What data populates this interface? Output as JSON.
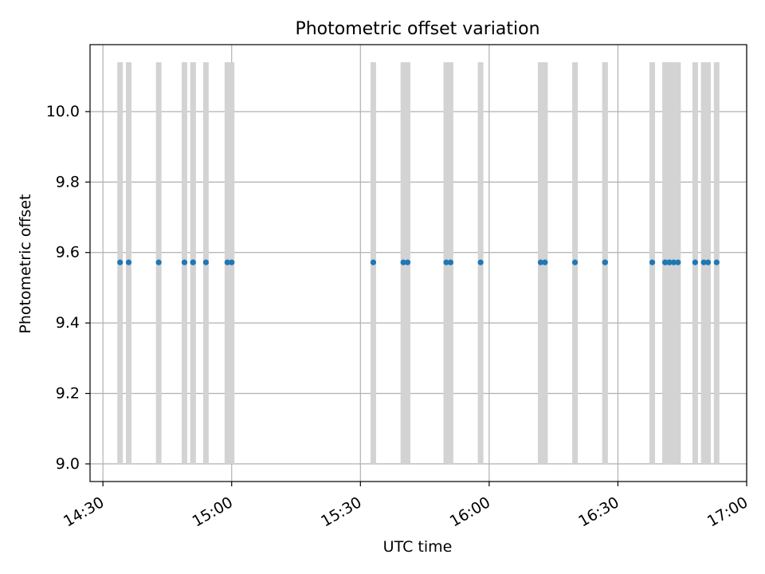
{
  "chart_data": {
    "type": "scatter",
    "title": "Photometric offset variation",
    "xlabel": "UTC time",
    "ylabel": "Photometric offset",
    "x_is_time": true,
    "xlim": [
      "14:27",
      "17:00"
    ],
    "ylim": [
      8.95,
      10.19
    ],
    "grid": true,
    "x_ticks": [
      "14:30",
      "15:00",
      "15:30",
      "16:00",
      "16:30",
      "17:00"
    ],
    "y_ticks": [
      "9.0",
      "9.2",
      "9.4",
      "9.6",
      "9.8",
      "10.0"
    ],
    "band_y_range": [
      9.0,
      10.14
    ],
    "point_value": 9.572,
    "times": [
      "14:34",
      "14:36",
      "14:43",
      "14:49",
      "14:51",
      "14:51",
      "14:54",
      "14:59",
      "15:00",
      "15:33",
      "15:40",
      "15:41",
      "15:50",
      "15:51",
      "15:58",
      "16:12",
      "16:13",
      "16:20",
      "16:27",
      "16:27",
      "16:38",
      "16:41",
      "16:41",
      "16:42",
      "16:42",
      "16:43",
      "16:44",
      "16:48",
      "16:50",
      "16:51",
      "16:53"
    ],
    "colors": {
      "points": "#1f77b4",
      "bands": "#d3d3d3",
      "grid": "#b0b0b0"
    }
  }
}
